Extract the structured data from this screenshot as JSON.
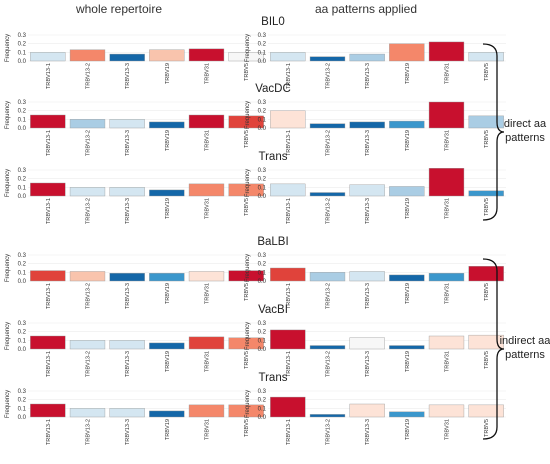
{
  "headers": {
    "left": "whole repertoire",
    "right": "aa patterns applied"
  },
  "groups": [
    {
      "label_lines": [
        "direct aa",
        "patterns"
      ],
      "rows": [
        0,
        1,
        2
      ]
    },
    {
      "label_lines": [
        "indirect aa",
        "patterns"
      ],
      "rows": [
        3,
        4,
        5
      ]
    }
  ],
  "colors": {
    "dark_red": "#c8102e",
    "red": "#e0433b",
    "salmon": "#f4876a",
    "light_salmon": "#f9c4ad",
    "pale_peach": "#fde3d7",
    "near_white": "#f7f7f7",
    "pale_blue": "#d4e6f1",
    "light_blue": "#aacde4",
    "medium_blue": "#3b97cc",
    "dark_blue": "#1467a8"
  },
  "chart_data": [
    {
      "type": "bar",
      "title": "BIL0",
      "ylabel": "Frequency",
      "ylim": [
        0,
        0.3
      ],
      "yticks": [
        "0.0",
        "0.1",
        "0.2",
        "0.3"
      ],
      "categories": [
        "TRBV13-1",
        "TRBV13-2",
        "TRBV13-3",
        "TRBV19",
        "TRBV31",
        "TRBV5"
      ],
      "panels": [
        {
          "label": "whole repertoire",
          "values": [
            0.1,
            0.13,
            0.08,
            0.13,
            0.14,
            0.1
          ],
          "colors": [
            "pale_blue",
            "salmon",
            "dark_blue",
            "light_salmon",
            "dark_red",
            "near_white"
          ]
        },
        {
          "label": "aa patterns applied",
          "values": [
            0.1,
            0.05,
            0.08,
            0.2,
            0.22,
            0.1
          ],
          "colors": [
            "pale_blue",
            "dark_blue",
            "light_blue",
            "salmon",
            "dark_red",
            "pale_blue"
          ]
        }
      ]
    },
    {
      "type": "bar",
      "title": "VacDC",
      "ylabel": "Frequency",
      "ylim": [
        0,
        0.3
      ],
      "yticks": [
        "0.0",
        "0.1",
        "0.2",
        "0.3"
      ],
      "categories": [
        "TRBV13-1",
        "TRBV13-2",
        "TRBV13-3",
        "TRBV19",
        "TRBV31",
        "TRBV5"
      ],
      "panels": [
        {
          "label": "whole repertoire",
          "values": [
            0.15,
            0.1,
            0.1,
            0.07,
            0.15,
            0.14
          ],
          "colors": [
            "dark_red",
            "light_blue",
            "pale_blue",
            "dark_blue",
            "dark_red",
            "red"
          ]
        },
        {
          "label": "aa patterns applied",
          "values": [
            0.2,
            0.05,
            0.07,
            0.08,
            0.3,
            0.14
          ],
          "colors": [
            "pale_peach",
            "dark_blue",
            "dark_blue",
            "medium_blue",
            "dark_red",
            "light_blue"
          ]
        }
      ]
    },
    {
      "type": "bar",
      "title": "Trans",
      "ylabel": "Frequency",
      "ylim": [
        0,
        0.3
      ],
      "yticks": [
        "0.0",
        "0.1",
        "0.2",
        "0.3"
      ],
      "categories": [
        "TRBV13-1",
        "TRBV13-2",
        "TRBV13-3",
        "TRBV19",
        "TRBV31",
        "TRBV5"
      ],
      "panels": [
        {
          "label": "whole repertoire",
          "values": [
            0.15,
            0.1,
            0.1,
            0.07,
            0.14,
            0.14
          ],
          "colors": [
            "dark_red",
            "pale_blue",
            "pale_blue",
            "dark_blue",
            "salmon",
            "salmon"
          ]
        },
        {
          "label": "aa patterns applied",
          "values": [
            0.14,
            0.04,
            0.13,
            0.11,
            0.32,
            0.06
          ],
          "colors": [
            "pale_blue",
            "dark_blue",
            "pale_blue",
            "light_blue",
            "dark_red",
            "medium_blue"
          ]
        }
      ]
    },
    {
      "type": "bar",
      "title": "BaLBI",
      "ylabel": "Frequency",
      "ylim": [
        0,
        0.3
      ],
      "yticks": [
        "0.0",
        "0.1",
        "0.2",
        "0.3"
      ],
      "categories": [
        "TRBV13-1",
        "TRBV13-2",
        "TRBV13-3",
        "TRBV19",
        "TRBV31",
        "TRBV5"
      ],
      "panels": [
        {
          "label": "whole repertoire",
          "values": [
            0.12,
            0.11,
            0.09,
            0.09,
            0.11,
            0.12
          ],
          "colors": [
            "red",
            "light_salmon",
            "dark_blue",
            "medium_blue",
            "pale_peach",
            "dark_red"
          ]
        },
        {
          "label": "aa patterns applied",
          "values": [
            0.15,
            0.1,
            0.11,
            0.07,
            0.09,
            0.17
          ],
          "colors": [
            "red",
            "light_blue",
            "pale_blue",
            "dark_blue",
            "medium_blue",
            "dark_red"
          ]
        }
      ]
    },
    {
      "type": "bar",
      "title": "VacBI",
      "ylabel": "Frequency",
      "ylim": [
        0,
        0.3
      ],
      "yticks": [
        "0.0",
        "0.1",
        "0.2",
        "0.3"
      ],
      "categories": [
        "TRBV13-1",
        "TRBV13-2",
        "TRBV13-3",
        "TRBV19",
        "TRBV31",
        "TRBV5"
      ],
      "panels": [
        {
          "label": "whole repertoire",
          "values": [
            0.15,
            0.1,
            0.1,
            0.07,
            0.14,
            0.13
          ],
          "colors": [
            "dark_red",
            "pale_blue",
            "pale_blue",
            "dark_blue",
            "red",
            "salmon"
          ]
        },
        {
          "label": "aa patterns applied",
          "values": [
            0.22,
            0.04,
            0.13,
            0.04,
            0.15,
            0.16
          ],
          "colors": [
            "dark_red",
            "dark_blue",
            "near_white",
            "dark_blue",
            "pale_peach",
            "pale_peach"
          ]
        }
      ]
    },
    {
      "type": "bar",
      "title": "Trans",
      "ylabel": "Frequency",
      "ylim": [
        0,
        0.3
      ],
      "yticks": [
        "0.0",
        "0.1",
        "0.2",
        "0.3"
      ],
      "categories": [
        "TRBV13-1",
        "TRBV13-2",
        "TRBV13-3",
        "TRBV19",
        "TRBV31",
        "TRBV5"
      ],
      "panels": [
        {
          "label": "whole repertoire",
          "values": [
            0.15,
            0.1,
            0.1,
            0.07,
            0.14,
            0.14
          ],
          "colors": [
            "dark_red",
            "pale_blue",
            "pale_blue",
            "dark_blue",
            "salmon",
            "salmon"
          ]
        },
        {
          "label": "aa patterns applied",
          "values": [
            0.23,
            0.03,
            0.15,
            0.06,
            0.14,
            0.14
          ],
          "colors": [
            "dark_red",
            "dark_blue",
            "pale_peach",
            "medium_blue",
            "pale_peach",
            "pale_peach"
          ]
        }
      ]
    }
  ]
}
